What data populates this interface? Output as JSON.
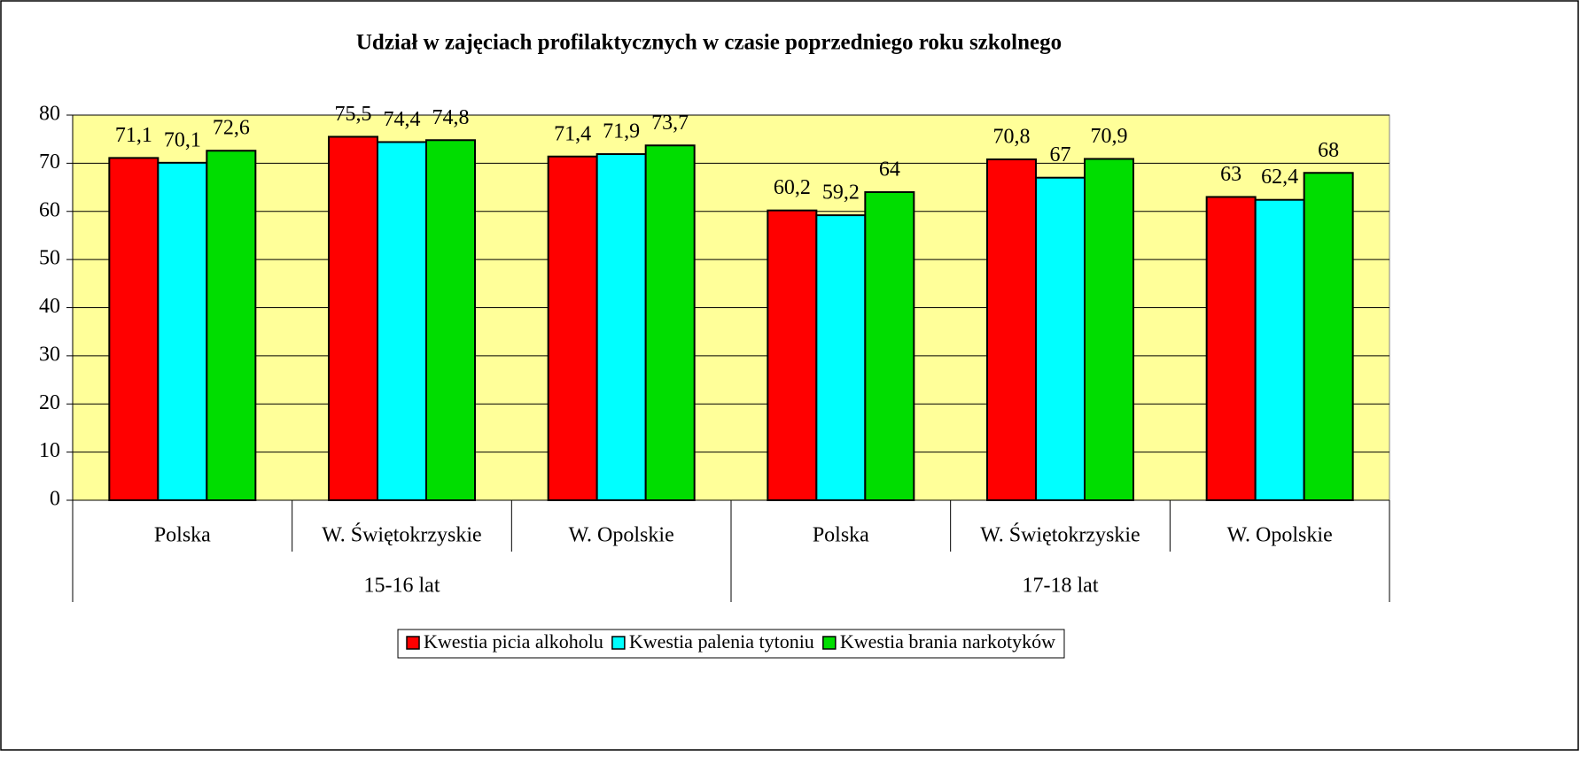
{
  "chart_data": {
    "type": "bar",
    "title": "Udział w zajęciach profilaktycznych w czasie poprzedniego roku szkolnego",
    "categories": [
      "Polska",
      "W. Świętokrzyskie",
      "W. Opolskie",
      "Polska",
      "W. Świętokrzyskie",
      "W. Opolskie"
    ],
    "groups": [
      {
        "name": "15-16 lat",
        "size": 3
      },
      {
        "name": "17-18 lat",
        "size": 3
      }
    ],
    "series": [
      {
        "name": "Kwestia picia alkoholu",
        "color": "#ff0000",
        "values": [
          71.1,
          75.5,
          71.4,
          60.2,
          70.8,
          63
        ],
        "value_labels": [
          "71,1",
          "75,5",
          "71,4",
          "60,2",
          "70,8",
          "63"
        ]
      },
      {
        "name": "Kwestia palenia tytoniu",
        "color": "#00ffff",
        "values": [
          70.1,
          74.4,
          71.9,
          59.2,
          67,
          62.4
        ],
        "value_labels": [
          "70,1",
          "74,4",
          "71,9",
          "59,2",
          "67",
          "62,4"
        ]
      },
      {
        "name": "Kwestia brania narkotyków",
        "color": "#00dd00",
        "values": [
          72.6,
          74.8,
          73.7,
          64,
          70.9,
          68
        ],
        "value_labels": [
          "72,6",
          "74,8",
          "73,7",
          "64",
          "70,9",
          "68"
        ]
      }
    ],
    "ylim": [
      0,
      80
    ],
    "yticks": [
      0,
      10,
      20,
      30,
      40,
      50,
      60,
      70,
      80
    ],
    "grid": true,
    "legend": "bottom"
  }
}
